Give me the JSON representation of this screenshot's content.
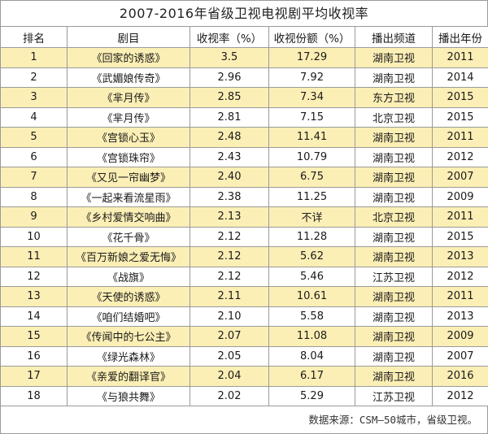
{
  "title": "2007-2016年省级卫视电视剧平均收视率",
  "headers": [
    "排名",
    "剧目",
    "收视率（%）",
    "收视份额（%）",
    "播出频道",
    "播出年份"
  ],
  "rows": [
    {
      "rank": "1",
      "name": "《回家的诱惑》",
      "rate": "3.5",
      "share": "17.29",
      "channel": "湖南卫视",
      "year": "2011"
    },
    {
      "rank": "2",
      "name": "《武媚娘传奇》",
      "rate": "2.96",
      "share": "7.92",
      "channel": "湖南卫视",
      "year": "2014"
    },
    {
      "rank": "3",
      "name": "《芈月传》",
      "rate": "2.85",
      "share": "7.34",
      "channel": "东方卫视",
      "year": "2015"
    },
    {
      "rank": "4",
      "name": "《芈月传》",
      "rate": "2.81",
      "share": "7.15",
      "channel": "北京卫视",
      "year": "2015"
    },
    {
      "rank": "5",
      "name": "《宫锁心玉》",
      "rate": "2.48",
      "share": "11.41",
      "channel": "湖南卫视",
      "year": "2011"
    },
    {
      "rank": "6",
      "name": "《宫锁珠帘》",
      "rate": "2.43",
      "share": "10.79",
      "channel": "湖南卫视",
      "year": "2012"
    },
    {
      "rank": "7",
      "name": "《又见一帘幽梦》",
      "rate": "2.40",
      "share": "6.75",
      "channel": "湖南卫视",
      "year": "2007"
    },
    {
      "rank": "8",
      "name": "《一起来看流星雨》",
      "rate": "2.38",
      "share": "11.25",
      "channel": "湖南卫视",
      "year": "2009"
    },
    {
      "rank": "9",
      "name": "《乡村爱情交响曲》",
      "rate": "2.13",
      "share": "不详",
      "channel": "北京卫视",
      "year": "2011"
    },
    {
      "rank": "10",
      "name": "《花千骨》",
      "rate": "2.12",
      "share": "11.28",
      "channel": "湖南卫视",
      "year": "2015"
    },
    {
      "rank": "11",
      "name": "《百万新娘之爱无悔》",
      "rate": "2.12",
      "share": "5.62",
      "channel": "湖南卫视",
      "year": "2013"
    },
    {
      "rank": "12",
      "name": "《战旗》",
      "rate": "2.12",
      "share": "5.46",
      "channel": "江苏卫视",
      "year": "2012"
    },
    {
      "rank": "13",
      "name": "《天使的诱惑》",
      "rate": "2.11",
      "share": "10.61",
      "channel": "湖南卫视",
      "year": "2011"
    },
    {
      "rank": "14",
      "name": "《咱们结婚吧》",
      "rate": "2.10",
      "share": "5.58",
      "channel": "湖南卫视",
      "year": "2013"
    },
    {
      "rank": "15",
      "name": "《传闻中的七公主》",
      "rate": "2.07",
      "share": "11.08",
      "channel": "湖南卫视",
      "year": "2009"
    },
    {
      "rank": "16",
      "name": "《绿光森林》",
      "rate": "2.05",
      "share": "8.04",
      "channel": "湖南卫视",
      "year": "2007"
    },
    {
      "rank": "17",
      "name": "《亲爱的翻译官》",
      "rate": "2.04",
      "share": "6.17",
      "channel": "湖南卫视",
      "year": "2016"
    },
    {
      "rank": "18",
      "name": "《与狼共舞》",
      "rate": "2.02",
      "share": "5.29",
      "channel": "江苏卫视",
      "year": "2012"
    }
  ],
  "source": "数据来源：CSM—50城市，省级卫视。",
  "colors": {
    "highlight_row": "#fcefb5",
    "plain_row": "#ffffff",
    "border": "#9a9a9a"
  }
}
